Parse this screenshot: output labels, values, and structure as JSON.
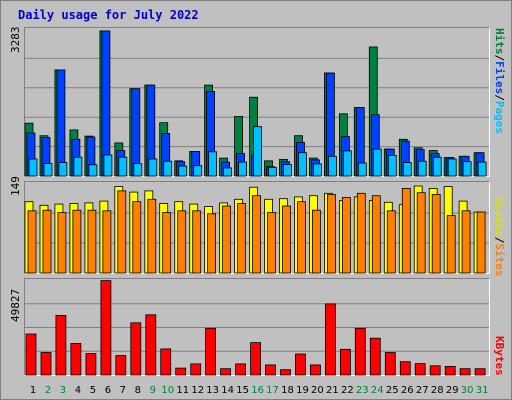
{
  "title": "Daily usage for July 2022",
  "colors": {
    "hits": "#008040",
    "files": "#0040ff",
    "pages": "#00c0ff",
    "visits": "#ffff00",
    "sites": "#ff8000",
    "kbytes": "#ff0000",
    "weekend": "#008040",
    "weekday": "#000000"
  },
  "chart_data": [
    {
      "type": "bar",
      "panel": "traffic",
      "ymax_label": "3283",
      "ylim": [
        0,
        3283
      ],
      "right_labels": [
        "Pages",
        "Files",
        "Hits"
      ],
      "categories": [
        "1",
        "2",
        "3",
        "4",
        "5",
        "6",
        "7",
        "8",
        "9",
        "10",
        "11",
        "12",
        "13",
        "14",
        "15",
        "16",
        "17",
        "18",
        "19",
        "20",
        "21",
        "22",
        "23",
        "24",
        "25",
        "26",
        "27",
        "28",
        "29",
        "30",
        "31"
      ],
      "series": [
        {
          "name": "Hits",
          "values": [
            1180,
            900,
            2370,
            1030,
            890,
            3240,
            740,
            1950,
            2030,
            1190,
            340,
            550,
            2030,
            400,
            1330,
            1760,
            340,
            370,
            900,
            400,
            2300,
            1390,
            1530,
            2880,
            600,
            820,
            630,
            570,
            410,
            440,
            520
          ]
        },
        {
          "name": "Files",
          "values": [
            960,
            860,
            2370,
            820,
            870,
            3240,
            570,
            1950,
            2030,
            950,
            320,
            550,
            1890,
            310,
            500,
            470,
            210,
            320,
            750,
            360,
            2300,
            880,
            1530,
            1370,
            600,
            780,
            590,
            500,
            410,
            440,
            520
          ]
        },
        {
          "name": "Pages",
          "values": [
            380,
            280,
            300,
            420,
            250,
            470,
            420,
            280,
            380,
            330,
            220,
            230,
            540,
            180,
            310,
            1100,
            190,
            260,
            520,
            270,
            440,
            560,
            290,
            600,
            460,
            300,
            330,
            420,
            380,
            320,
            310
          ]
        }
      ]
    },
    {
      "type": "bar",
      "panel": "visitors",
      "ymax_label": "149",
      "ylim": [
        0,
        149
      ],
      "right_labels": [
        "Sites",
        "Visits"
      ],
      "categories": [
        "1",
        "2",
        "3",
        "4",
        "5",
        "6",
        "7",
        "8",
        "9",
        "10",
        "11",
        "12",
        "13",
        "14",
        "15",
        "16",
        "17",
        "18",
        "19",
        "20",
        "21",
        "22",
        "23",
        "24",
        "25",
        "26",
        "27",
        "28",
        "29",
        "30",
        "31"
      ],
      "series": [
        {
          "name": "Visits",
          "values": [
            118,
            112,
            114,
            115,
            116,
            119,
            143,
            134,
            136,
            115,
            118,
            114,
            110,
            116,
            122,
            142,
            122,
            123,
            126,
            128,
            132,
            120,
            126,
            120,
            117,
            113,
            144,
            140,
            143,
            119,
            101
          ]
        },
        {
          "name": "Sites",
          "values": [
            103,
            104,
            100,
            104,
            104,
            103,
            136,
            118,
            122,
            100,
            103,
            103,
            98,
            111,
            115,
            128,
            100,
            111,
            118,
            104,
            130,
            125,
            132,
            128,
            103,
            140,
            133,
            130,
            95,
            103,
            101
          ]
        }
      ]
    },
    {
      "type": "bar",
      "panel": "kbytes",
      "ymax_label": "49827",
      "ylim": [
        0,
        49827
      ],
      "right_labels": [
        "KBytes"
      ],
      "categories": [
        "1",
        "2",
        "3",
        "4",
        "5",
        "6",
        "7",
        "8",
        "9",
        "10",
        "11",
        "12",
        "13",
        "14",
        "15",
        "16",
        "17",
        "18",
        "19",
        "20",
        "21",
        "22",
        "23",
        "24",
        "25",
        "26",
        "27",
        "28",
        "29",
        "30",
        "31"
      ],
      "series": [
        {
          "name": "KBytes",
          "values": [
            21500,
            11800,
            31200,
            16500,
            11200,
            49500,
            10200,
            27400,
            31600,
            13700,
            3600,
            5800,
            24500,
            3300,
            5800,
            17000,
            5300,
            2800,
            11000,
            5300,
            37300,
            13500,
            24500,
            19300,
            11800,
            7000,
            6000,
            4800,
            4500,
            3300,
            3300
          ]
        }
      ]
    }
  ],
  "day_labels": [
    {
      "label": "1",
      "weekend": false
    },
    {
      "label": "2",
      "weekend": true
    },
    {
      "label": "3",
      "weekend": true
    },
    {
      "label": "4",
      "weekend": false
    },
    {
      "label": "5",
      "weekend": false
    },
    {
      "label": "6",
      "weekend": false
    },
    {
      "label": "7",
      "weekend": false
    },
    {
      "label": "8",
      "weekend": false
    },
    {
      "label": "9",
      "weekend": true
    },
    {
      "label": "10",
      "weekend": true
    },
    {
      "label": "11",
      "weekend": false
    },
    {
      "label": "12",
      "weekend": false
    },
    {
      "label": "13",
      "weekend": false
    },
    {
      "label": "14",
      "weekend": false
    },
    {
      "label": "15",
      "weekend": false
    },
    {
      "label": "16",
      "weekend": true
    },
    {
      "label": "17",
      "weekend": true
    },
    {
      "label": "18",
      "weekend": false
    },
    {
      "label": "19",
      "weekend": false
    },
    {
      "label": "20",
      "weekend": false
    },
    {
      "label": "21",
      "weekend": false
    },
    {
      "label": "22",
      "weekend": false
    },
    {
      "label": "23",
      "weekend": true
    },
    {
      "label": "24",
      "weekend": true
    },
    {
      "label": "25",
      "weekend": false
    },
    {
      "label": "26",
      "weekend": false
    },
    {
      "label": "27",
      "weekend": false
    },
    {
      "label": "28",
      "weekend": false
    },
    {
      "label": "29",
      "weekend": false
    },
    {
      "label": "30",
      "weekend": true
    },
    {
      "label": "31",
      "weekend": true
    }
  ]
}
